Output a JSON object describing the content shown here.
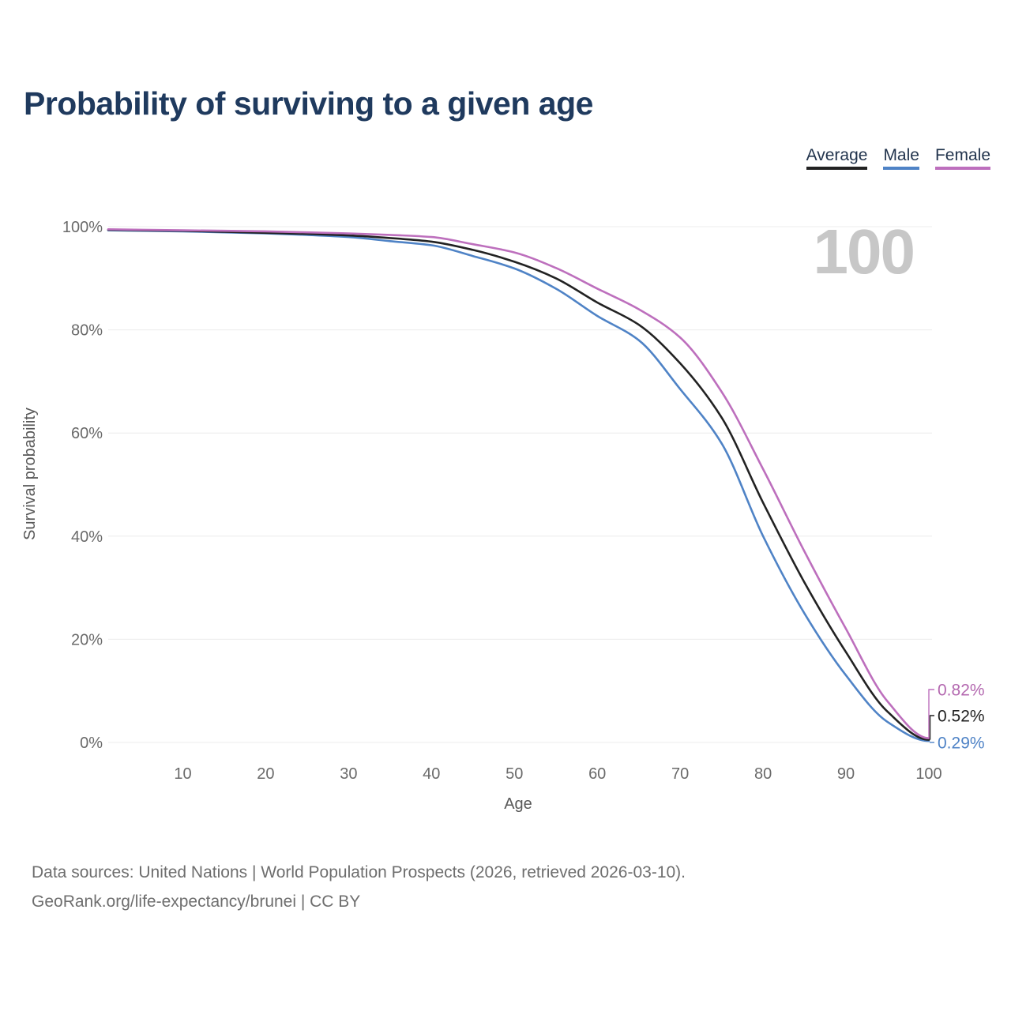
{
  "page": {
    "title_heading": "Probability of surviving to a given age"
  },
  "legend": {
    "items": [
      {
        "label": "Average",
        "color": "#222222"
      },
      {
        "label": "Male",
        "color": "#4f83c6"
      },
      {
        "label": "Female",
        "color": "#bd6fbd"
      }
    ]
  },
  "watermark_age": "100",
  "chart_data": {
    "type": "line",
    "title": "Probability of surviving to a given age",
    "xlabel": "Age",
    "ylabel": "Survival probability",
    "xlim": [
      1,
      100
    ],
    "ylim": [
      0,
      100
    ],
    "x_ticks": [
      10,
      20,
      30,
      40,
      50,
      60,
      70,
      80,
      90,
      100
    ],
    "y_ticks": {
      "values": [
        0,
        20,
        40,
        60,
        80,
        100
      ],
      "labels": [
        "0%",
        "20%",
        "40%",
        "60%",
        "80%",
        "100%"
      ]
    },
    "grid": "horizontal",
    "legend_position": "top-right",
    "x": [
      1,
      5,
      10,
      15,
      20,
      25,
      30,
      35,
      40,
      45,
      50,
      55,
      60,
      65,
      70,
      75,
      80,
      85,
      90,
      95,
      100
    ],
    "series": [
      {
        "name": "Male",
        "color": "#4f83c6",
        "end_label": "0.29%",
        "end_label_color": "#4f83c6",
        "values": [
          99.3,
          99.2,
          99.1,
          98.9,
          98.7,
          98.4,
          98.0,
          97.2,
          96.4,
          94.3,
          91.9,
          88.0,
          82.7,
          78.0,
          68.5,
          58.0,
          40.0,
          25.0,
          13.0,
          4.0,
          0.29
        ]
      },
      {
        "name": "Average",
        "color": "#222222",
        "end_label": "0.52%",
        "end_label_color": "#222222",
        "values": [
          99.4,
          99.3,
          99.2,
          99.0,
          98.8,
          98.6,
          98.3,
          97.8,
          97.1,
          95.5,
          93.2,
          90.0,
          85.3,
          81.0,
          73.5,
          63.0,
          46.5,
          31.0,
          17.5,
          6.0,
          0.52
        ]
      },
      {
        "name": "Female",
        "color": "#bd6fbd",
        "end_label": "0.82%",
        "end_label_color": "#b469b0",
        "values": [
          99.5,
          99.4,
          99.3,
          99.2,
          99.1,
          98.9,
          98.7,
          98.4,
          98.0,
          96.6,
          95.0,
          92.0,
          88.0,
          84.0,
          78.5,
          68.0,
          53.0,
          37.0,
          22.0,
          8.0,
          0.82
        ]
      }
    ]
  },
  "footer": {
    "line1": "Data sources: United Nations | World Population Prospects (2026, retrieved 2026-03-10).",
    "line2": "GeoRank.org/life-expectancy/brunei | CC BY"
  }
}
